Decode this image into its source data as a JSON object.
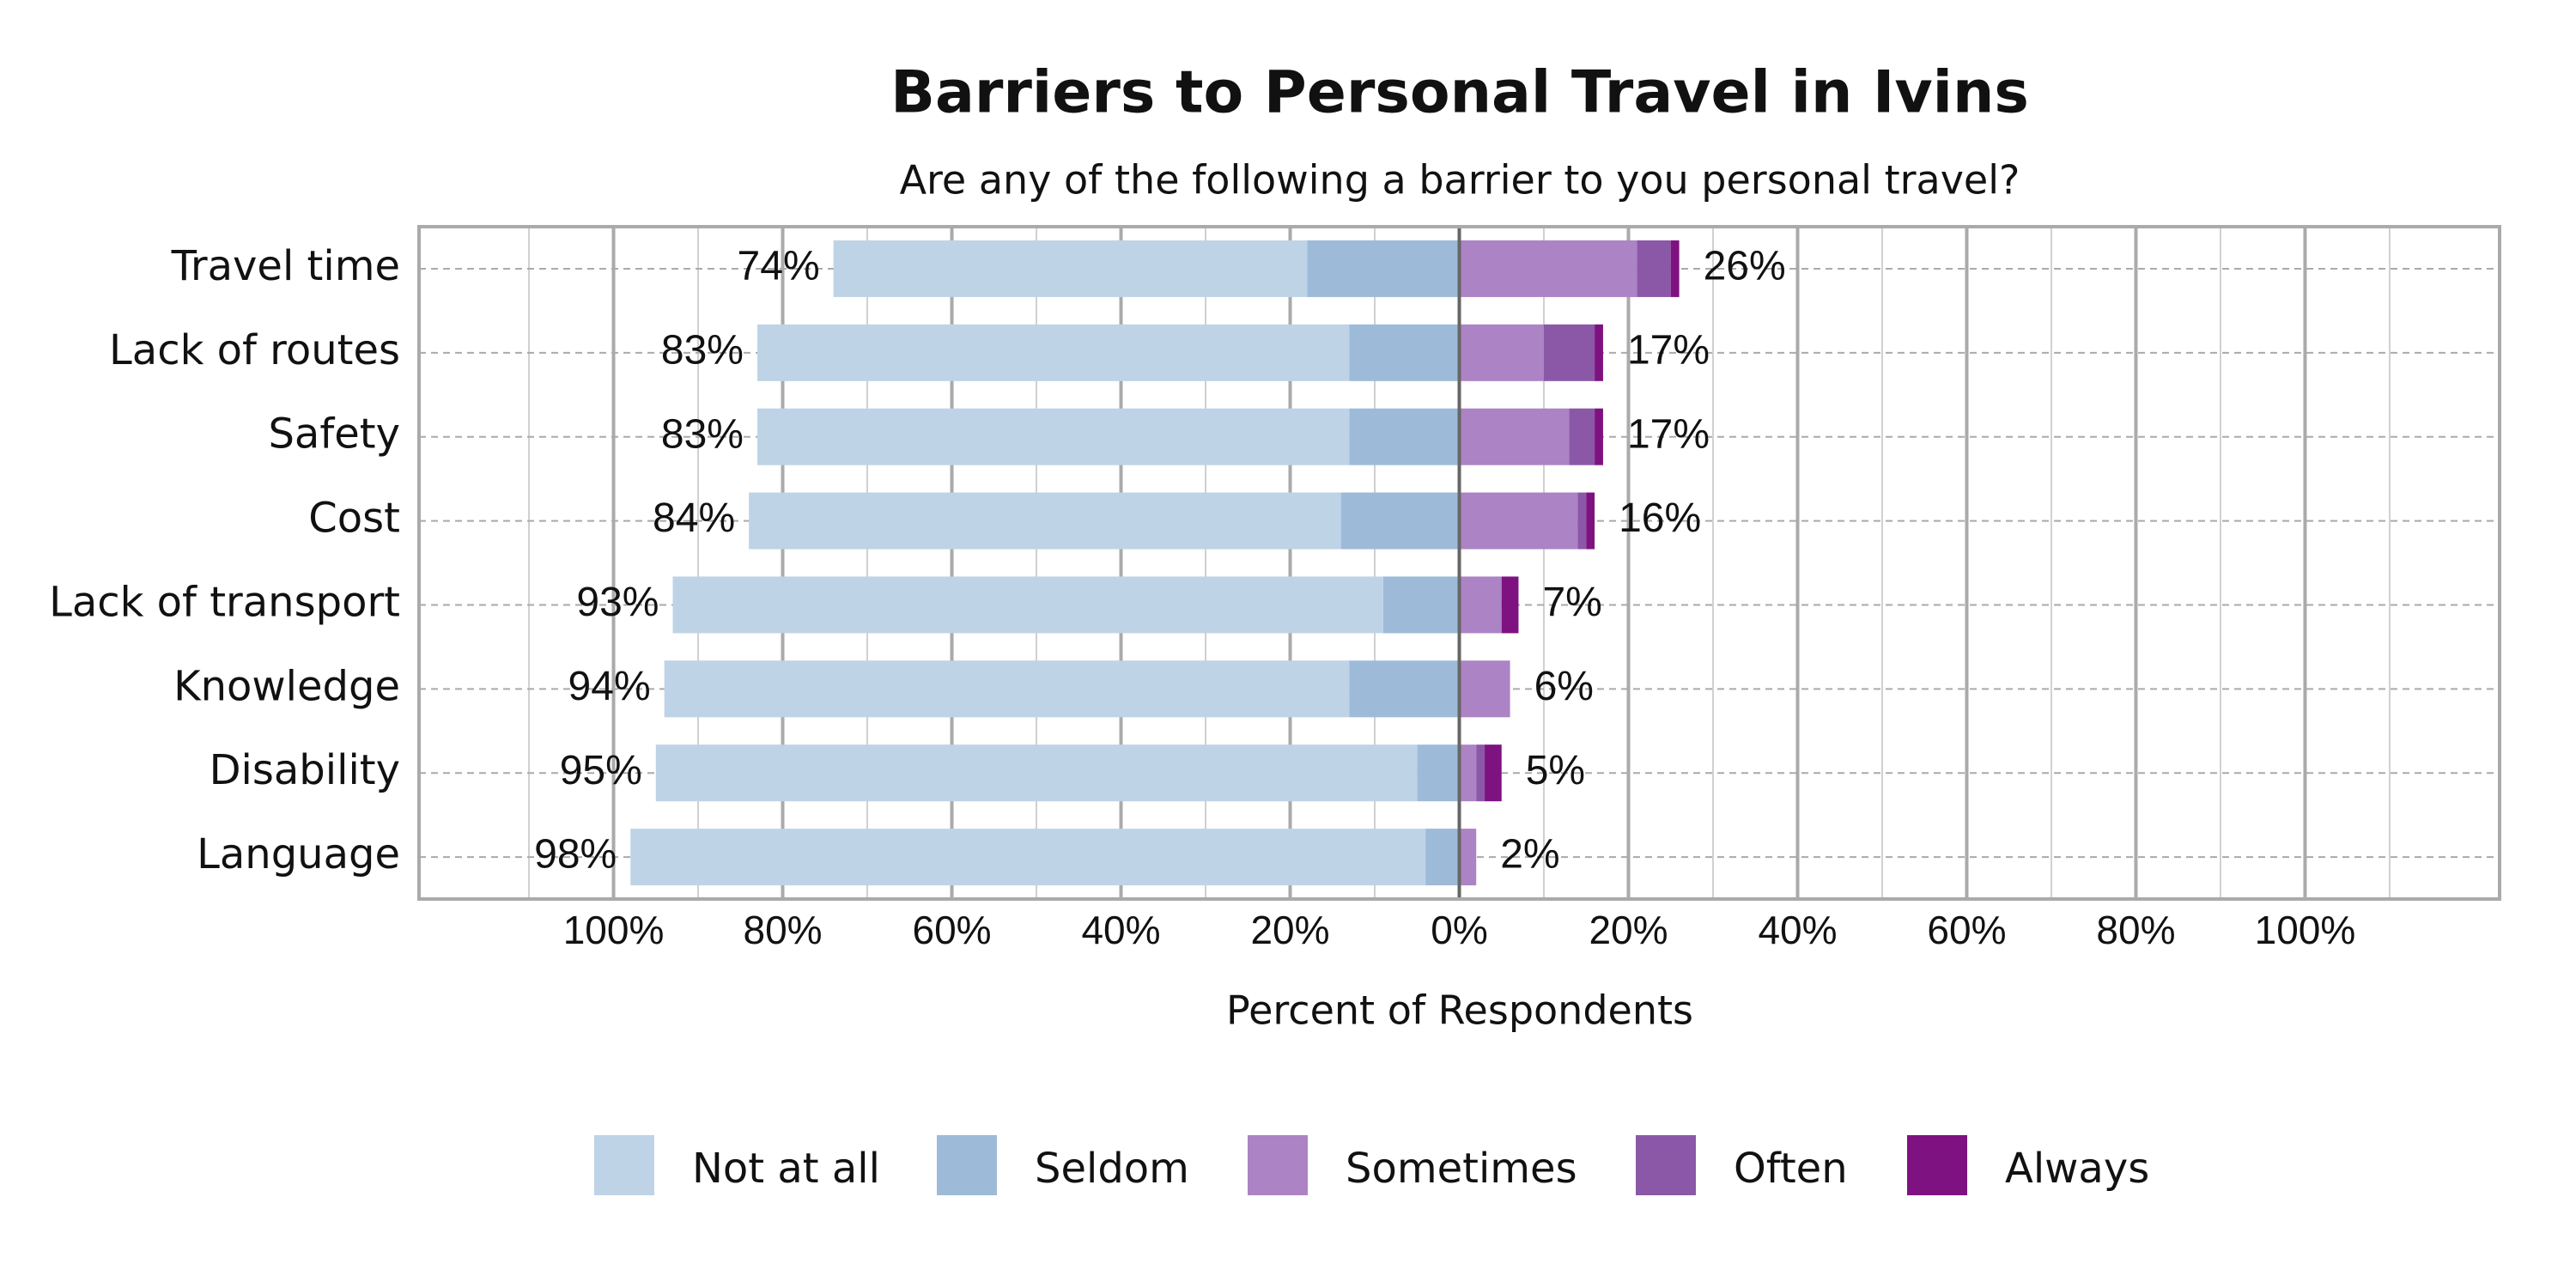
{
  "chart_data": {
    "type": "diverging-bar",
    "title": "Barriers to Personal Travel in Ivins",
    "subtitle": "Are any of the following a barrier to you personal travel?",
    "x_label": "Percent of Respondents",
    "categories": [
      "Travel time",
      "Lack of routes",
      "Safety",
      "Cost",
      "Lack of transport",
      "Knowledge",
      "Disability",
      "Language"
    ],
    "series": [
      {
        "name": "Not at all",
        "color": "#bed3e6",
        "side": "left",
        "values": [
          56,
          70,
          70,
          70,
          84,
          81,
          90,
          94
        ]
      },
      {
        "name": "Seldom",
        "color": "#9dbbd9",
        "side": "left",
        "values": [
          18,
          13,
          13,
          14,
          9,
          13,
          5,
          4
        ]
      },
      {
        "name": "Sometimes",
        "color": "#ac83c4",
        "side": "right",
        "values": [
          21,
          10,
          13,
          14,
          5,
          6,
          2,
          2
        ]
      },
      {
        "name": "Often",
        "color": "#8b58a8",
        "side": "right",
        "values": [
          4,
          6,
          3,
          1,
          0,
          0,
          1,
          0
        ]
      },
      {
        "name": "Always",
        "color": "#7e1280",
        "side": "right",
        "values": [
          1,
          1,
          1,
          1,
          2,
          0,
          2,
          0
        ]
      }
    ],
    "left_totals": {
      "values": [
        74,
        83,
        83,
        84,
        93,
        94,
        95,
        98
      ],
      "value_labels": [
        "74%",
        "83%",
        "83%",
        "84%",
        "93%",
        "94%",
        "95%",
        "98%"
      ]
    },
    "right_totals": {
      "values": [
        26,
        17,
        17,
        16,
        7,
        6,
        5,
        2
      ],
      "value_labels": [
        "26%",
        "17%",
        "17%",
        "16%",
        "7%",
        "6%",
        "5%",
        "2%"
      ]
    },
    "xlim": [
      -123,
      123
    ],
    "xticks": [
      {
        "value": -100,
        "label": "100%"
      },
      {
        "value": -80,
        "label": "80%"
      },
      {
        "value": -60,
        "label": "60%"
      },
      {
        "value": -40,
        "label": "40%"
      },
      {
        "value": -20,
        "label": "20%"
      },
      {
        "value": 0,
        "label": "0%"
      },
      {
        "value": 20,
        "label": "20%"
      },
      {
        "value": 40,
        "label": "40%"
      },
      {
        "value": 60,
        "label": "60%"
      },
      {
        "value": 80,
        "label": "80%"
      },
      {
        "value": 100,
        "label": "100%"
      }
    ],
    "minor_xticks": [
      -110,
      -90,
      -70,
      -50,
      -30,
      -10,
      10,
      30,
      50,
      70,
      90,
      110
    ],
    "grid": true,
    "legend": "bottom"
  }
}
